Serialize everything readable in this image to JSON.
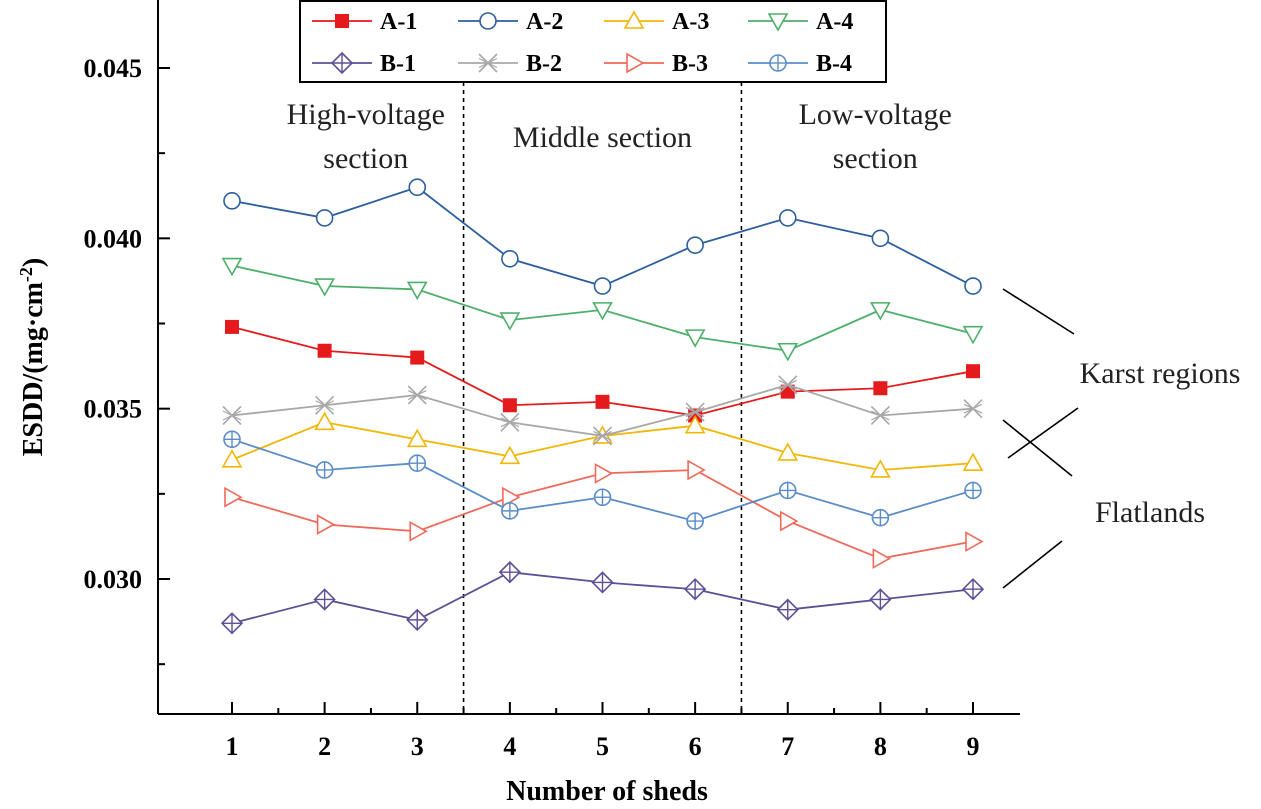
{
  "chart_data": {
    "type": "line",
    "title": "",
    "xlabel": "Number of sheds",
    "ylabel": "ESDD/(mg·cm",
    "ylabel_exponent": "-2",
    "ylabel_suffix": ")",
    "x": [
      1,
      2,
      3,
      4,
      5,
      6,
      7,
      8,
      9
    ],
    "ylim": [
      0.0262,
      0.048
    ],
    "yticks": [
      0.03,
      0.035,
      0.04,
      0.045
    ],
    "ytick_labels": [
      "0.030",
      "0.035",
      "0.040",
      "0.045"
    ],
    "grid": false,
    "legend_position": "top",
    "series": [
      {
        "name": "A-1",
        "color": "#e41a1c",
        "marker": "square-filled",
        "values": [
          0.0374,
          0.0367,
          0.0365,
          0.0351,
          0.0352,
          0.0348,
          0.0355,
          0.0356,
          0.0361
        ]
      },
      {
        "name": "A-2",
        "color": "#2d5f9e",
        "marker": "circle",
        "values": [
          0.0411,
          0.0406,
          0.0415,
          0.0394,
          0.0386,
          0.0398,
          0.0406,
          0.04,
          0.0386
        ]
      },
      {
        "name": "A-3",
        "color": "#f2b705",
        "marker": "triangle-up",
        "values": [
          0.0335,
          0.0346,
          0.0341,
          0.0336,
          0.0342,
          0.0345,
          0.0337,
          0.0332,
          0.0334
        ]
      },
      {
        "name": "A-4",
        "color": "#4daf6a",
        "marker": "triangle-down",
        "values": [
          0.0392,
          0.0386,
          0.0385,
          0.0376,
          0.0379,
          0.0371,
          0.0367,
          0.0379,
          0.0372
        ]
      },
      {
        "name": "B-1",
        "color": "#5e4f96",
        "marker": "diamond-plus",
        "values": [
          0.0287,
          0.0294,
          0.0288,
          0.0302,
          0.0299,
          0.0297,
          0.0291,
          0.0294,
          0.0297
        ]
      },
      {
        "name": "B-2",
        "color": "#a8a8a8",
        "marker": "star-x",
        "values": [
          0.0348,
          0.0351,
          0.0354,
          0.0346,
          0.0342,
          0.0349,
          0.0357,
          0.0348,
          0.035
        ]
      },
      {
        "name": "B-3",
        "color": "#ef6a5a",
        "marker": "triangle-right",
        "values": [
          0.0324,
          0.0316,
          0.0314,
          0.0324,
          0.0331,
          0.0332,
          0.0317,
          0.0306,
          0.0311
        ]
      },
      {
        "name": "B-4",
        "color": "#5a8dc8",
        "marker": "circle-plus",
        "values": [
          0.0341,
          0.0332,
          0.0334,
          0.032,
          0.0324,
          0.0317,
          0.0326,
          0.0318,
          0.0326
        ]
      }
    ],
    "sections": [
      {
        "lines": [
          "High-voltage",
          "section"
        ]
      },
      {
        "lines": [
          "Middle section"
        ]
      },
      {
        "lines": [
          "Low-voltage",
          "section"
        ]
      }
    ],
    "section_dividers_x": [
      3.5,
      6.5
    ],
    "annotations": [
      "Karst regions",
      "Flatlands"
    ]
  }
}
